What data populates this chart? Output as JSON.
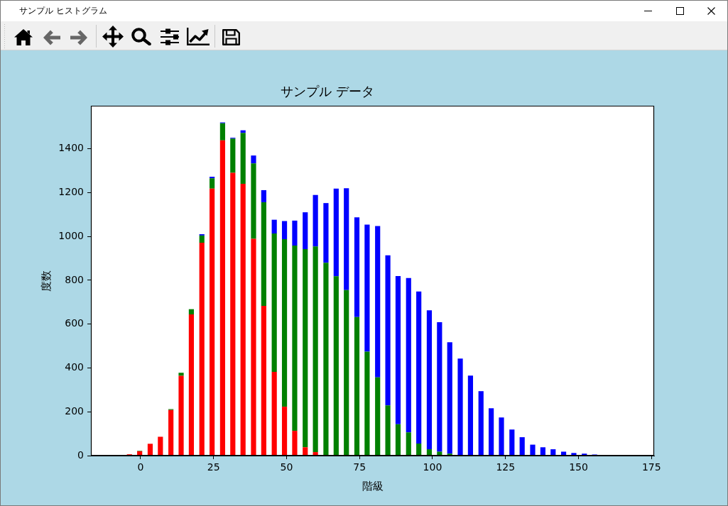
{
  "chart_data": {
    "type": "bar",
    "title": "サンプル データ",
    "xlabel": "階級",
    "ylabel": "度数",
    "annotations": [
      "サンプル ヒストグラム"
    ],
    "x": [
      -3.8,
      -0.3,
      3.3,
      6.8,
      10.4,
      13.9,
      17.4,
      21.0,
      24.5,
      28.1,
      31.6,
      35.1,
      38.7,
      42.2,
      45.8,
      49.3,
      52.8,
      56.4,
      59.9,
      63.5,
      67.0,
      70.5,
      74.1,
      77.6,
      81.2,
      84.7,
      88.2,
      91.8,
      95.3,
      98.9,
      102.4,
      105.9,
      109.5,
      113.0,
      116.6,
      120.1,
      123.6,
      127.2,
      130.7,
      134.3,
      137.8,
      141.3,
      144.9,
      148.4,
      152.0,
      155.5
    ],
    "series": [
      {
        "color": "#ff0000",
        "values": [
          6,
          20,
          54,
          86,
          208,
          364,
          644,
          971,
          1218,
          1438,
          1290,
          1240,
          989,
          683,
          382,
          223,
          113,
          38,
          16,
          0,
          0,
          0,
          0,
          0,
          0,
          0,
          0,
          0,
          0,
          0,
          0,
          0,
          0,
          0,
          0,
          0,
          0,
          0,
          0,
          0,
          0,
          0,
          0,
          0,
          0,
          0
        ]
      },
      {
        "color": "#008000",
        "values": [
          0,
          2,
          0,
          0,
          4,
          14,
          24,
          33,
          47,
          78,
          156,
          232,
          344,
          473,
          631,
          764,
          845,
          904,
          938,
          880,
          818,
          755,
          632,
          474,
          357,
          229,
          143,
          106,
          55,
          29,
          18,
          9,
          0,
          0,
          0,
          0,
          0,
          0,
          0,
          0,
          0,
          0,
          0,
          0,
          0,
          0
        ]
      },
      {
        "color": "#0000ff",
        "values": [
          0,
          0,
          0,
          0,
          0,
          0,
          0,
          6,
          7,
          4,
          4,
          12,
          36,
          55,
          63,
          83,
          114,
          168,
          235,
          272,
          400,
          465,
          455,
          580,
          690,
          685,
          676,
          704,
          694,
          634,
          591,
          508,
          443,
          365,
          294,
          216,
          174,
          119,
          84,
          50,
          38,
          29,
          18,
          12,
          9,
          5
        ]
      }
    ],
    "stacked": true,
    "xlim": [
      -17.0,
      175.9
    ],
    "xticks": [
      0,
      25,
      50,
      75,
      100,
      125,
      150,
      175
    ],
    "ylim": [
      0,
      1596
    ],
    "yticks": [
      0,
      200,
      400,
      600,
      800,
      1000,
      1200,
      1400
    ]
  }
}
